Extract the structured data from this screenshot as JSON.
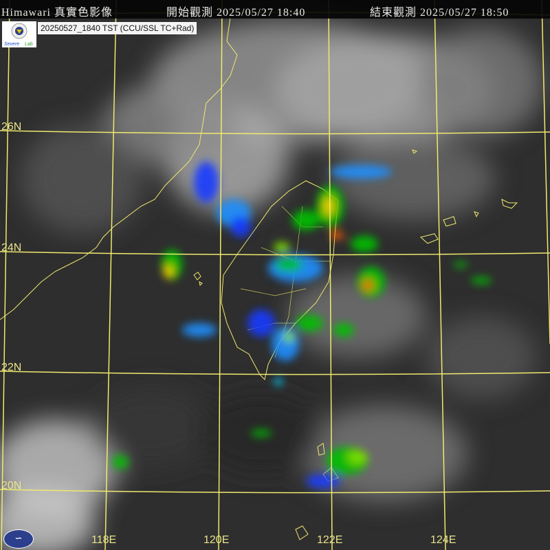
{
  "header": {
    "title": "Himawari 真實色影像",
    "start_label": "開始觀測",
    "start_time": "2025/05/27 18:40",
    "end_label": "結束觀測",
    "end_time": "2025/05/27 18:50"
  },
  "stamp": "20250527_1840 TST (CCU/SSL TC+Rad)",
  "logo": {
    "text": "Severe Storms Lab"
  },
  "grid": {
    "latitudes": [
      "26N",
      "24N",
      "22N",
      "20N"
    ],
    "longitudes": [
      "118E",
      "120E",
      "122E",
      "124E"
    ],
    "color": "#f0ea6e"
  },
  "radar_colors": [
    "#1a3cff",
    "#1e90ff",
    "#00d0ff",
    "#00c000",
    "#80e000",
    "#ffd000",
    "#ff6000",
    "#ff0000"
  ]
}
